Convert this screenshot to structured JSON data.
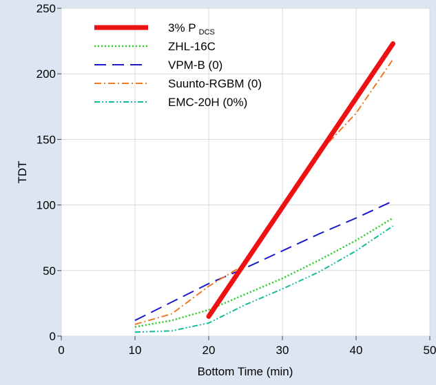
{
  "chart_data": {
    "type": "line",
    "title": "",
    "xlabel": "Bottom Time (min)",
    "ylabel": "TDT",
    "xlim": [
      0,
      50
    ],
    "ylim": [
      0,
      250
    ],
    "xticks": [
      0,
      10,
      20,
      30,
      40,
      50
    ],
    "yticks": [
      0,
      50,
      100,
      150,
      200,
      250
    ],
    "grid": true,
    "legend_position": "top-left",
    "background_color": "#dce6f2",
    "plot_background_color": "#ffffff",
    "series": [
      {
        "name": "3% P",
        "name_subscript": "DCS",
        "color": "#ee1111",
        "style": "solid-thick",
        "x": [
          20,
          45
        ],
        "y": [
          15,
          223
        ]
      },
      {
        "name": "ZHL-16C",
        "color": "#22cc22",
        "style": "dotted",
        "x": [
          10,
          15,
          20,
          25,
          30,
          35,
          40,
          45
        ],
        "y": [
          7,
          12,
          20,
          32,
          44,
          58,
          73,
          90
        ]
      },
      {
        "name": "VPM-B (0)",
        "color": "#1a1acc",
        "style": "long-dash",
        "x": [
          10,
          15,
          20,
          25,
          30,
          35,
          40,
          45
        ],
        "y": [
          12,
          26,
          40,
          52,
          65,
          78,
          90,
          103
        ]
      },
      {
        "name": "Suunto-RGBM (0)",
        "color": "#ee7722",
        "style": "dash-dot",
        "x": [
          10,
          15,
          20,
          25,
          30,
          35,
          40,
          45
        ],
        "y": [
          9,
          17,
          38,
          55,
          96,
          140,
          170,
          211
        ]
      },
      {
        "name": "EMC-20H (0%)",
        "color": "#11bb99",
        "style": "dash-dot-dot",
        "x": [
          10,
          15,
          20,
          25,
          30,
          35,
          40,
          45
        ],
        "y": [
          3,
          4,
          10,
          24,
          36,
          49,
          65,
          84
        ]
      }
    ]
  }
}
